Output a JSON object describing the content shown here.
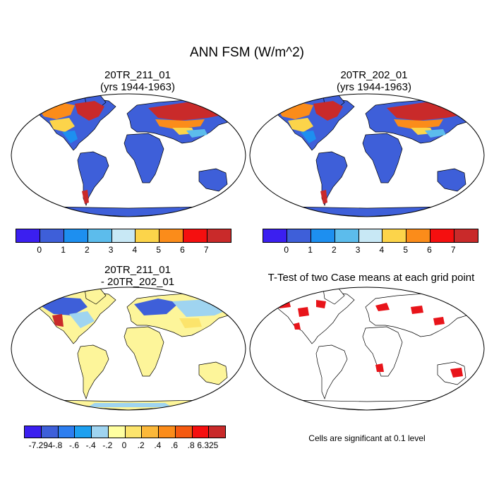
{
  "title": "ANN FSM (W/m^2)",
  "panels": {
    "p1": {
      "title_line1": "20TR_211_01",
      "title_line2": "(yrs 1944-1963)"
    },
    "p2": {
      "title_line1": "20TR_202_01",
      "title_line2": "(yrs 1944-1963)"
    },
    "p3": {
      "title_line1": "20TR_211_01",
      "title_line2": "- 20TR_202_01"
    },
    "p4": {
      "title_line1": "T-Test of two Case means at each grid point"
    }
  },
  "colorbar_main": {
    "colors": [
      "#3b1ff0",
      "#3e5fd9",
      "#1d8ff0",
      "#5cbcec",
      "#c8e8f5",
      "#fcd44a",
      "#fb8c1a",
      "#f50f0f",
      "#c92a2a"
    ],
    "labels": [
      "0",
      "1",
      "2",
      "3",
      "4",
      "5",
      "6",
      "7"
    ]
  },
  "colorbar_diff": {
    "colors": [
      "#3b1ff0",
      "#3e5fd9",
      "#2d7ef0",
      "#1da0f0",
      "#9fd4f0",
      "#ffffa0",
      "#fce46c",
      "#fbb83a",
      "#fb8c1a",
      "#f55a10",
      "#f50f0f",
      "#c92a2a"
    ],
    "labels": [
      "-7.294",
      "-.8",
      "-.6",
      "-.4",
      "-.2",
      "0",
      ".2",
      ".4",
      ".6",
      ".8",
      "6.325"
    ]
  },
  "ttest_note": "Cells are significant at 0.1 level",
  "colors": {
    "ocean": "#ffffff",
    "land_base": "#3e5fd9",
    "diff_base": "#fdf59a",
    "signif": "#e8141a"
  }
}
